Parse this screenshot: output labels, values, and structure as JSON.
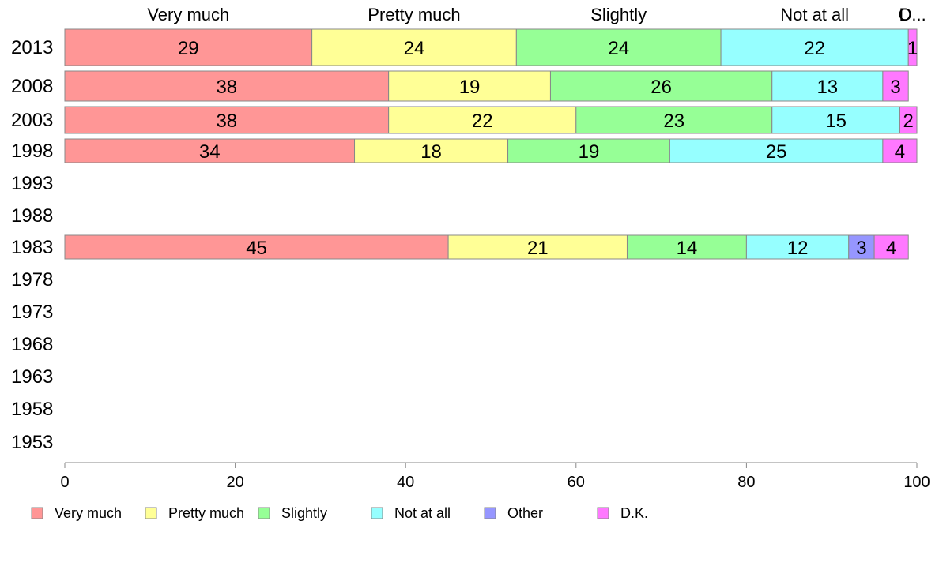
{
  "chart_data": {
    "type": "bar",
    "orientation": "horizontal",
    "stacked": true,
    "categories": [
      "2013",
      "2008",
      "2003",
      "1998",
      "1993",
      "1988",
      "1983",
      "1978",
      "1973",
      "1968",
      "1963",
      "1958",
      "1953"
    ],
    "series": [
      {
        "name": "Very much",
        "color": "#ff9696",
        "values": [
          29,
          38,
          38,
          34,
          null,
          null,
          45,
          null,
          null,
          null,
          null,
          null,
          null
        ]
      },
      {
        "name": "Pretty much",
        "color": "#ffff96",
        "values": [
          24,
          19,
          22,
          18,
          null,
          null,
          21,
          null,
          null,
          null,
          null,
          null,
          null
        ]
      },
      {
        "name": "Slightly",
        "color": "#96ff96",
        "values": [
          24,
          26,
          23,
          19,
          null,
          null,
          14,
          null,
          null,
          null,
          null,
          null,
          null
        ]
      },
      {
        "name": "Not at all",
        "color": "#96ffff",
        "values": [
          22,
          13,
          15,
          25,
          null,
          null,
          12,
          null,
          null,
          null,
          null,
          null,
          null
        ]
      },
      {
        "name": "Other",
        "color": "#9696ff",
        "values": [
          0,
          0,
          0,
          0,
          null,
          null,
          3,
          null,
          null,
          null,
          null,
          null,
          null
        ]
      },
      {
        "name": "D.K.",
        "color": "#ff78ff",
        "values": [
          1,
          3,
          2,
          4,
          null,
          null,
          4,
          null,
          null,
          null,
          null,
          null,
          null
        ]
      }
    ],
    "top_labels": [
      "Very much",
      "Pretty much",
      "Slightly",
      "Not at all",
      "O",
      "D..."
    ],
    "xlim": [
      0,
      100
    ],
    "xticks": [
      0,
      20,
      40,
      60,
      80,
      100
    ],
    "legend_position": "bottom",
    "grid": false,
    "title": "",
    "xlabel": "",
    "ylabel": ""
  }
}
